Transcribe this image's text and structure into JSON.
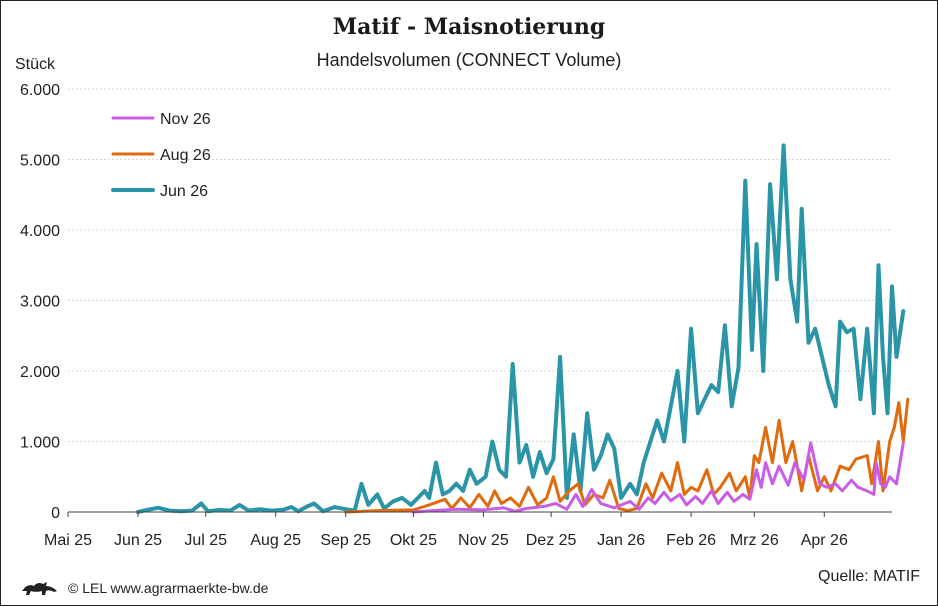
{
  "header": {
    "title": "Matif - Maisnotierung",
    "subtitle": "Handelsvolumen (CONNECT Volume)",
    "unit": "Stück"
  },
  "footer": {
    "copyright": "© LEL www.agrarmaerkte-bw.de",
    "source": "Quelle: MATIF",
    "logo_icon": "lion-logo-icon"
  },
  "chart_data": {
    "type": "line",
    "title": "Matif - Maisnotierung",
    "subtitle": "Handelsvolumen (CONNECT Volume)",
    "ylabel": "Stück",
    "xlabel": "",
    "ylim": [
      0,
      6000
    ],
    "y_ticks": [
      0,
      1000,
      2000,
      3000,
      4000,
      5000,
      6000
    ],
    "y_tick_labels": [
      "0",
      "1.000",
      "2.000",
      "3.000",
      "4.000",
      "5.000",
      "6.000"
    ],
    "x_range": [
      "2025-05-01",
      "2026-05-01"
    ],
    "x_ticks": [
      "2025-05-01",
      "2025-06-01",
      "2025-07-01",
      "2025-08-01",
      "2025-09-01",
      "2025-10-01",
      "2025-11-01",
      "2025-12-01",
      "2026-01-01",
      "2026-02-01",
      "2026-03-01",
      "2026-04-01"
    ],
    "x_tick_labels": [
      "Mai 25",
      "Jun 25",
      "Jul 25",
      "Aug 25",
      "Sep 25",
      "Okt 25",
      "Nov 25",
      "Dez 25",
      "Jan 26",
      "Feb 26",
      "Mrz 26",
      "Apr 26"
    ],
    "grid": true,
    "legend_position": "top-left",
    "series": [
      {
        "name": "Nov 26",
        "color": "#c85ee6",
        "points": [
          [
            "2025-10-01",
            0
          ],
          [
            "2025-10-10",
            20
          ],
          [
            "2025-10-20",
            40
          ],
          [
            "2025-11-01",
            30
          ],
          [
            "2025-11-10",
            60
          ],
          [
            "2025-11-15",
            10
          ],
          [
            "2025-11-20",
            50
          ],
          [
            "2025-11-28",
            80
          ],
          [
            "2025-12-03",
            120
          ],
          [
            "2025-12-08",
            40
          ],
          [
            "2025-12-12",
            250
          ],
          [
            "2025-12-15",
            80
          ],
          [
            "2025-12-19",
            320
          ],
          [
            "2025-12-23",
            120
          ],
          [
            "2025-12-29",
            60
          ],
          [
            "2026-01-05",
            150
          ],
          [
            "2026-01-09",
            40
          ],
          [
            "2026-01-13",
            200
          ],
          [
            "2026-01-16",
            120
          ],
          [
            "2026-01-20",
            280
          ],
          [
            "2026-01-23",
            160
          ],
          [
            "2026-01-27",
            250
          ],
          [
            "2026-01-30",
            100
          ],
          [
            "2026-02-03",
            220
          ],
          [
            "2026-02-06",
            120
          ],
          [
            "2026-02-10",
            300
          ],
          [
            "2026-02-13",
            120
          ],
          [
            "2026-02-17",
            280
          ],
          [
            "2026-02-20",
            150
          ],
          [
            "2026-02-24",
            250
          ],
          [
            "2026-02-27",
            180
          ],
          [
            "2026-03-02",
            600
          ],
          [
            "2026-03-04",
            350
          ],
          [
            "2026-03-06",
            700
          ],
          [
            "2026-03-09",
            400
          ],
          [
            "2026-03-12",
            650
          ],
          [
            "2026-03-16",
            380
          ],
          [
            "2026-03-19",
            700
          ],
          [
            "2026-03-23",
            450
          ],
          [
            "2026-03-26",
            980
          ],
          [
            "2026-03-30",
            400
          ],
          [
            "2026-04-02",
            350
          ],
          [
            "2026-04-06",
            400
          ],
          [
            "2026-04-09",
            300
          ],
          [
            "2026-04-13",
            450
          ],
          [
            "2026-04-16",
            350
          ],
          [
            "2026-04-20",
            300
          ],
          [
            "2026-04-23",
            250
          ],
          [
            "2026-04-24",
            700
          ],
          [
            "2026-04-26",
            400
          ],
          [
            "2026-04-28",
            350
          ],
          [
            "2026-04-30",
            500
          ],
          [
            "2026-05-03",
            400
          ],
          [
            "2026-05-06",
            980
          ]
        ]
      },
      {
        "name": "Aug 26",
        "color": "#e06a0e",
        "points": [
          [
            "2025-09-01",
            0
          ],
          [
            "2025-09-15",
            20
          ],
          [
            "2025-10-01",
            30
          ],
          [
            "2025-10-08",
            100
          ],
          [
            "2025-10-15",
            180
          ],
          [
            "2025-10-18",
            50
          ],
          [
            "2025-10-22",
            200
          ],
          [
            "2025-10-26",
            60
          ],
          [
            "2025-10-30",
            250
          ],
          [
            "2025-11-03",
            80
          ],
          [
            "2025-11-06",
            300
          ],
          [
            "2025-11-09",
            120
          ],
          [
            "2025-11-13",
            200
          ],
          [
            "2025-11-17",
            80
          ],
          [
            "2025-11-21",
            350
          ],
          [
            "2025-11-25",
            100
          ],
          [
            "2025-11-29",
            200
          ],
          [
            "2025-12-02",
            500
          ],
          [
            "2025-12-05",
            150
          ],
          [
            "2025-12-09",
            300
          ],
          [
            "2025-12-13",
            400
          ],
          [
            "2025-12-16",
            100
          ],
          [
            "2025-12-20",
            250
          ],
          [
            "2025-12-24",
            200
          ],
          [
            "2025-12-27",
            450
          ],
          [
            "2025-12-31",
            50
          ],
          [
            "2026-01-04",
            20
          ],
          [
            "2026-01-08",
            50
          ],
          [
            "2026-01-12",
            400
          ],
          [
            "2026-01-15",
            200
          ],
          [
            "2026-01-19",
            550
          ],
          [
            "2026-01-23",
            300
          ],
          [
            "2026-01-26",
            700
          ],
          [
            "2026-01-29",
            250
          ],
          [
            "2026-02-01",
            350
          ],
          [
            "2026-02-04",
            300
          ],
          [
            "2026-02-08",
            600
          ],
          [
            "2026-02-11",
            250
          ],
          [
            "2026-02-14",
            350
          ],
          [
            "2026-02-18",
            550
          ],
          [
            "2026-02-21",
            300
          ],
          [
            "2026-02-25",
            500
          ],
          [
            "2026-02-27",
            200
          ],
          [
            "2026-03-01",
            800
          ],
          [
            "2026-03-03",
            700
          ],
          [
            "2026-03-06",
            1200
          ],
          [
            "2026-03-09",
            700
          ],
          [
            "2026-03-12",
            1300
          ],
          [
            "2026-03-15",
            700
          ],
          [
            "2026-03-18",
            1000
          ],
          [
            "2026-03-22",
            300
          ],
          [
            "2026-03-25",
            800
          ],
          [
            "2026-03-29",
            300
          ],
          [
            "2026-04-01",
            500
          ],
          [
            "2026-04-04",
            300
          ],
          [
            "2026-04-08",
            650
          ],
          [
            "2026-04-12",
            600
          ],
          [
            "2026-04-15",
            750
          ],
          [
            "2026-04-18",
            780
          ],
          [
            "2026-04-20",
            800
          ],
          [
            "2026-04-22",
            400
          ],
          [
            "2026-04-25",
            1000
          ],
          [
            "2026-04-27",
            300
          ],
          [
            "2026-04-30",
            1000
          ],
          [
            "2026-05-02",
            1200
          ],
          [
            "2026-05-04",
            1550
          ],
          [
            "2026-05-06",
            1000
          ],
          [
            "2026-05-08",
            1600
          ]
        ]
      },
      {
        "name": "Jun 26",
        "color": "#2b95a8",
        "points": [
          [
            "2025-06-01",
            0
          ],
          [
            "2025-06-05",
            30
          ],
          [
            "2025-06-10",
            60
          ],
          [
            "2025-06-15",
            20
          ],
          [
            "2025-06-20",
            10
          ],
          [
            "2025-06-25",
            20
          ],
          [
            "2025-06-29",
            120
          ],
          [
            "2025-07-02",
            10
          ],
          [
            "2025-07-07",
            30
          ],
          [
            "2025-07-12",
            20
          ],
          [
            "2025-07-16",
            100
          ],
          [
            "2025-07-20",
            20
          ],
          [
            "2025-07-25",
            40
          ],
          [
            "2025-07-30",
            20
          ],
          [
            "2025-08-04",
            30
          ],
          [
            "2025-08-08",
            70
          ],
          [
            "2025-08-11",
            10
          ],
          [
            "2025-08-15",
            80
          ],
          [
            "2025-08-18",
            120
          ],
          [
            "2025-08-22",
            10
          ],
          [
            "2025-08-27",
            70
          ],
          [
            "2025-09-01",
            40
          ],
          [
            "2025-09-05",
            20
          ],
          [
            "2025-09-08",
            400
          ],
          [
            "2025-09-11",
            100
          ],
          [
            "2025-09-15",
            250
          ],
          [
            "2025-09-18",
            50
          ],
          [
            "2025-09-22",
            150
          ],
          [
            "2025-09-26",
            200
          ],
          [
            "2025-09-30",
            100
          ],
          [
            "2025-10-03",
            200
          ],
          [
            "2025-10-06",
            300
          ],
          [
            "2025-10-08",
            200
          ],
          [
            "2025-10-11",
            700
          ],
          [
            "2025-10-14",
            250
          ],
          [
            "2025-10-17",
            300
          ],
          [
            "2025-10-20",
            400
          ],
          [
            "2025-10-23",
            300
          ],
          [
            "2025-10-26",
            600
          ],
          [
            "2025-10-29",
            400
          ],
          [
            "2025-11-02",
            500
          ],
          [
            "2025-11-05",
            1000
          ],
          [
            "2025-11-08",
            600
          ],
          [
            "2025-11-11",
            500
          ],
          [
            "2025-11-14",
            2100
          ],
          [
            "2025-11-17",
            700
          ],
          [
            "2025-11-20",
            950
          ],
          [
            "2025-11-23",
            500
          ],
          [
            "2025-11-26",
            850
          ],
          [
            "2025-11-29",
            550
          ],
          [
            "2025-12-02",
            750
          ],
          [
            "2025-12-05",
            2200
          ],
          [
            "2025-12-08",
            200
          ],
          [
            "2025-12-11",
            1100
          ],
          [
            "2025-12-14",
            300
          ],
          [
            "2025-12-17",
            1400
          ],
          [
            "2025-12-20",
            600
          ],
          [
            "2025-12-23",
            800
          ],
          [
            "2025-12-26",
            1100
          ],
          [
            "2025-12-29",
            900
          ],
          [
            "2026-01-01",
            200
          ],
          [
            "2026-01-05",
            400
          ],
          [
            "2026-01-08",
            250
          ],
          [
            "2026-01-11",
            700
          ],
          [
            "2026-01-14",
            1000
          ],
          [
            "2026-01-17",
            1300
          ],
          [
            "2026-01-20",
            1000
          ],
          [
            "2026-01-23",
            1500
          ],
          [
            "2026-01-26",
            2000
          ],
          [
            "2026-01-29",
            1000
          ],
          [
            "2026-02-01",
            2600
          ],
          [
            "2026-02-04",
            1400
          ],
          [
            "2026-02-07",
            1600
          ],
          [
            "2026-02-10",
            1800
          ],
          [
            "2026-02-13",
            1700
          ],
          [
            "2026-02-16",
            2650
          ],
          [
            "2026-02-19",
            1500
          ],
          [
            "2026-02-22",
            2050
          ],
          [
            "2026-02-25",
            4700
          ],
          [
            "2026-02-28",
            2300
          ],
          [
            "2026-03-02",
            3800
          ],
          [
            "2026-03-05",
            2000
          ],
          [
            "2026-03-08",
            4650
          ],
          [
            "2026-03-11",
            3300
          ],
          [
            "2026-03-14",
            5200
          ],
          [
            "2026-03-17",
            3300
          ],
          [
            "2026-03-20",
            2700
          ],
          [
            "2026-03-22",
            4300
          ],
          [
            "2026-03-25",
            2400
          ],
          [
            "2026-03-28",
            2600
          ],
          [
            "2026-03-31",
            2200
          ],
          [
            "2026-04-03",
            1800
          ],
          [
            "2026-04-06",
            1500
          ],
          [
            "2026-04-08",
            2700
          ],
          [
            "2026-04-11",
            2550
          ],
          [
            "2026-04-14",
            2600
          ],
          [
            "2026-04-17",
            1600
          ],
          [
            "2026-04-20",
            2600
          ],
          [
            "2026-04-23",
            1400
          ],
          [
            "2026-04-25",
            3500
          ],
          [
            "2026-04-27",
            2200
          ],
          [
            "2026-04-29",
            1400
          ],
          [
            "2026-05-01",
            3200
          ],
          [
            "2026-05-03",
            2200
          ],
          [
            "2026-05-06",
            2850
          ]
        ]
      }
    ]
  }
}
